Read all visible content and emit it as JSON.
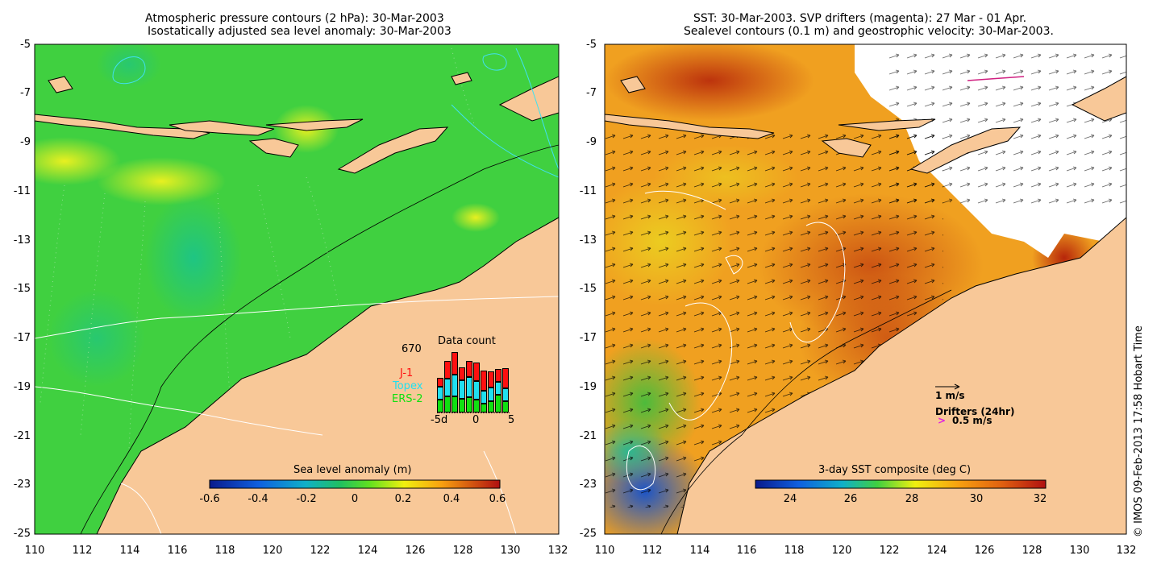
{
  "left_panel": {
    "title_line1": "Atmospheric pressure contours (2 hPa): 30-Mar-2003",
    "title_line2": "Isostatically adjusted sea level anomaly: 30-Mar-2003",
    "y_ticks": [
      "-5",
      "-7",
      "-9",
      "-11",
      "-13",
      "-15",
      "-17",
      "-19",
      "-21",
      "-23",
      "-25"
    ],
    "x_ticks": [
      "110",
      "112",
      "114",
      "116",
      "118",
      "120",
      "122",
      "124",
      "126",
      "128",
      "130",
      "132"
    ],
    "colorbar": {
      "label": "Sea level anomaly (m)",
      "ticks": [
        "-0.6",
        "-0.4",
        "-0.2",
        "0",
        "0.2",
        "0.4",
        "0.6"
      ]
    },
    "data_count": {
      "title": "Data count",
      "max_label": "670",
      "x_ticks": [
        "-5d",
        "0",
        "5"
      ],
      "legend": [
        {
          "label": "J-1",
          "color": "#ff1010"
        },
        {
          "label": "Topex",
          "color": "#20e0f0"
        },
        {
          "label": "ERS-2",
          "color": "#10e010"
        }
      ],
      "bars": [
        {
          "ers2": 0.2,
          "topex": 0.2,
          "j1": 0.14
        },
        {
          "ers2": 0.26,
          "topex": 0.28,
          "j1": 0.28
        },
        {
          "ers2": 0.26,
          "topex": 0.35,
          "j1": 0.36
        },
        {
          "ers2": 0.22,
          "topex": 0.3,
          "j1": 0.2
        },
        {
          "ers2": 0.24,
          "topex": 0.32,
          "j1": 0.26
        },
        {
          "ers2": 0.2,
          "topex": 0.3,
          "j1": 0.3
        },
        {
          "ers2": 0.14,
          "topex": 0.2,
          "j1": 0.32
        },
        {
          "ers2": 0.18,
          "topex": 0.22,
          "j1": 0.26
        },
        {
          "ers2": 0.28,
          "topex": 0.2,
          "j1": 0.2
        },
        {
          "ers2": 0.18,
          "topex": 0.2,
          "j1": 0.32
        }
      ]
    }
  },
  "right_panel": {
    "title_line1": "SST: 30-Mar-2003. SVP drifters (magenta): 27 Mar - 01 Apr.",
    "title_line2": "Sealevel contours (0.1 m) and geostrophic velocity: 30-Mar-2003.",
    "y_ticks": [
      "-5",
      "-7",
      "-9",
      "-11",
      "-13",
      "-15",
      "-17",
      "-19",
      "-21",
      "-23",
      "-25"
    ],
    "x_ticks": [
      "110",
      "112",
      "114",
      "116",
      "118",
      "120",
      "122",
      "124",
      "126",
      "128",
      "130",
      "132"
    ],
    "colorbar": {
      "label": "3-day SST composite (deg C)",
      "ticks": [
        "24",
        "26",
        "28",
        "30",
        "32"
      ]
    },
    "vector_legend": {
      "speed_label": "1 m/s",
      "drifters_label": "Drifters (24hr)",
      "drifter_speed_label": "0.5 m/s",
      "drifter_symbol": ">"
    }
  },
  "credit": "© IMOS 09-Feb-2013 17:58 Hobart Time",
  "colors": {
    "land": "#f8c898",
    "sla_ocean": "#40d040",
    "sst_ocean": "#f0a020",
    "sst_hot": "#c02010",
    "cloud": "#ffffff"
  }
}
